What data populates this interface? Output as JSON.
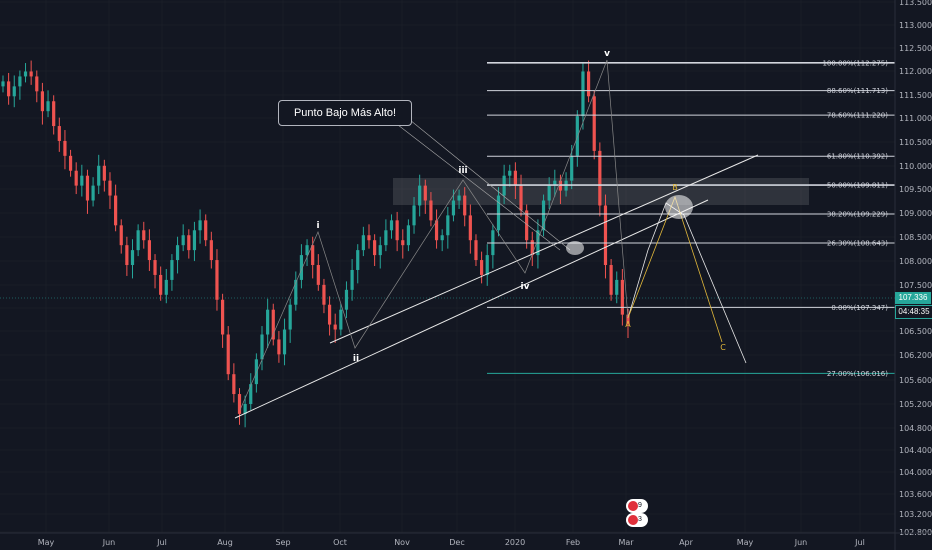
{
  "chart_data": {
    "type": "candlestick",
    "title": "",
    "ylim": [
      102.8,
      113.5
    ],
    "y_ticks": [
      "113.500",
      "113.000",
      "112.500",
      "112.000",
      "111.500",
      "111.000",
      "110.500",
      "110.000",
      "109.500",
      "109.000",
      "108.500",
      "108.000",
      "107.500",
      "107.000",
      "106.500",
      "106.200",
      "105.600",
      "105.200",
      "104.800",
      "104.400",
      "104.000",
      "103.600",
      "103.200",
      "102.800"
    ],
    "x_ticks": [
      "May",
      "Jun",
      "Jul",
      "Aug",
      "Sep",
      "Oct",
      "Nov",
      "Dec",
      "2020",
      "Feb",
      "Mar",
      "Apr",
      "May",
      "Jun",
      "Jul"
    ],
    "current_price": "107.336",
    "countdown": "04:48:35",
    "fib_levels": [
      {
        "label": "100.00%(112.275)",
        "value": 112.275
      },
      {
        "label": "88.60%(111.713)",
        "value": 111.713
      },
      {
        "label": "78.60%(111.220)",
        "value": 111.22
      },
      {
        "label": "61.80%(110.392)",
        "value": 110.392
      },
      {
        "label": "50.00%(109.811)",
        "value": 109.811
      },
      {
        "label": "38.20%(109.229)",
        "value": 109.229
      },
      {
        "label": "26.30%(108.643)",
        "value": 108.643
      },
      {
        "label": "0.00%(107.347)",
        "value": 107.347
      },
      {
        "label": "27.00%(106.016)",
        "value": 106.016
      }
    ],
    "wave_labels": [
      "i",
      "ii",
      "iii",
      "iv",
      "v",
      "A",
      "B",
      "C"
    ],
    "annotations": [
      "Punto Bajo Más Alto!"
    ],
    "events": [
      "9",
      "3"
    ],
    "candles_close": [
      111.9,
      111.6,
      111.8,
      112.0,
      112.1,
      112.0,
      111.7,
      111.3,
      111.5,
      111.0,
      110.7,
      110.4,
      110.1,
      109.8,
      110.0,
      109.5,
      109.8,
      110.2,
      109.9,
      109.6,
      109.0,
      108.6,
      108.2,
      108.5,
      108.9,
      108.7,
      108.3,
      108.0,
      107.6,
      107.9,
      108.3,
      108.6,
      108.8,
      108.5,
      108.9,
      109.1,
      108.7,
      108.3,
      107.5,
      106.8,
      106.0,
      105.6,
      105.2,
      105.4,
      105.8,
      106.3,
      106.8,
      107.3,
      106.7,
      106.4,
      106.9,
      107.4,
      107.9,
      108.4,
      108.6,
      108.2,
      107.8,
      107.4,
      107.0,
      106.9,
      107.3,
      107.7,
      108.1,
      108.5,
      108.8,
      108.7,
      108.4,
      108.6,
      108.9,
      109.1,
      108.7,
      108.6,
      109.0,
      109.4,
      109.8,
      109.5,
      109.1,
      108.7,
      108.8,
      109.2,
      109.5,
      109.6,
      109.2,
      108.7,
      108.3,
      108.0,
      108.4,
      108.9,
      109.6,
      110.0,
      110.1,
      109.8,
      109.3,
      108.7,
      108.4,
      108.9,
      109.5,
      109.8,
      109.9,
      109.7,
      109.9,
      110.4,
      111.2,
      112.1,
      111.6,
      110.5,
      109.4,
      108.2,
      107.6,
      107.9,
      107.2,
      107.0
    ]
  },
  "callout_text": "Punto Bajo Más Alto!",
  "colors": {
    "up": "#26a69a",
    "down": "#ef5350",
    "fib_line": "#d1d4dc",
    "target": "#26a69a",
    "abc": "#e0b73a"
  }
}
